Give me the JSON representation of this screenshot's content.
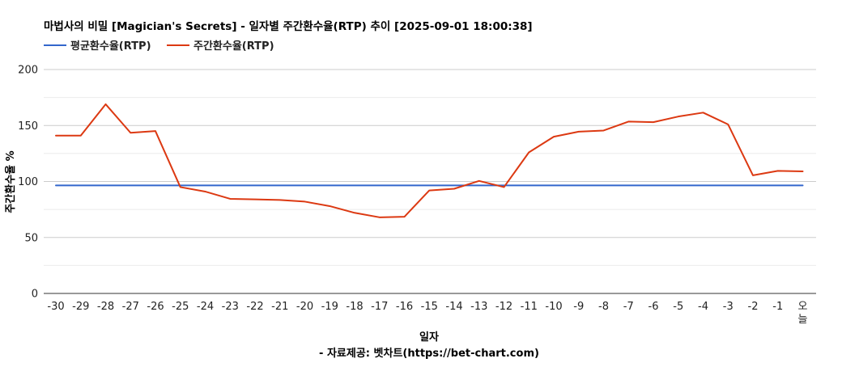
{
  "chart_data": {
    "type": "line",
    "title": "마법사의 비밀 [Magician's Secrets] - 일자별 주간환수율(RTP) 추이 [2025-09-01 18:00:38]",
    "xlabel": "일자",
    "source": "- 자료제공: 벳차트(https://bet-chart.com)",
    "ylabel": "주간환수율 %",
    "ylim": [
      0,
      200
    ],
    "yticks": [
      "0",
      "50",
      "100",
      "150",
      "200"
    ],
    "legend_position": "top-left",
    "grid": true,
    "categories": [
      "-30",
      "-29",
      "-28",
      "-27",
      "-26",
      "-25",
      "-24",
      "-23",
      "-22",
      "-21",
      "-20",
      "-19",
      "-18",
      "-17",
      "-16",
      "-15",
      "-14",
      "-13",
      "-12",
      "-11",
      "-10",
      "-9",
      "-8",
      "-7",
      "-6",
      "-5",
      "-4",
      "-3",
      "-2",
      "-1",
      "오늘"
    ],
    "series": [
      {
        "name": "평균환수율(RTP)",
        "color": "#3366cc",
        "values": [
          96.5,
          96.5,
          96.5,
          96.5,
          96.5,
          96.5,
          96.5,
          96.5,
          96.5,
          96.5,
          96.5,
          96.5,
          96.5,
          96.5,
          96.5,
          96.5,
          96.5,
          96.5,
          96.5,
          96.5,
          96.5,
          96.5,
          96.5,
          96.5,
          96.5,
          96.5,
          96.5,
          96.5,
          96.5,
          96.5,
          96.5
        ]
      },
      {
        "name": "주간환수율(RTP)",
        "color": "#dc3912",
        "values": [
          141,
          141,
          169,
          143.5,
          145,
          95,
          91,
          84.5,
          84,
          83.5,
          82,
          78,
          72,
          68,
          68.5,
          92,
          93.5,
          100.5,
          95,
          126,
          140,
          144.5,
          145.5,
          153.5,
          153,
          158,
          161.5,
          151,
          105.5,
          109.5,
          109
        ]
      }
    ]
  }
}
